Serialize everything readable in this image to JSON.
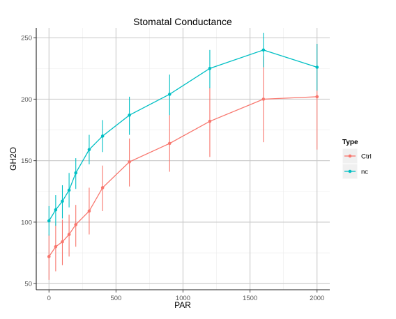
{
  "chart_data": {
    "type": "line",
    "title": "Stomatal Conductance",
    "xlabel": "PAR",
    "ylabel": "GH2O",
    "x": [
      0,
      50,
      100,
      150,
      200,
      300,
      400,
      600,
      900,
      1200,
      1600,
      2000
    ],
    "xlim": [
      -95,
      2095
    ],
    "ylim": [
      45,
      258
    ],
    "xticks": [
      0,
      500,
      1000,
      1500,
      2000
    ],
    "yticks": [
      50,
      100,
      150,
      200,
      250
    ],
    "xtick_labels": [
      "0",
      "500",
      "1000",
      "1500",
      "2000"
    ],
    "ytick_labels": [
      "50",
      "100",
      "150",
      "200",
      "250"
    ],
    "grid": true,
    "legend": {
      "title": "Type",
      "position": "right"
    },
    "series": [
      {
        "name": "Ctrl",
        "color": "#f8766d",
        "values": [
          72,
          80,
          84,
          90,
          98,
          109,
          128,
          149,
          164,
          182,
          200,
          202
        ],
        "lower": [
          53,
          60,
          65,
          72,
          80,
          90,
          109,
          129,
          141,
          153,
          165,
          159
        ],
        "upper": [
          90,
          99,
          102,
          106,
          114,
          128,
          146,
          168,
          187,
          210,
          235,
          245
        ]
      },
      {
        "name": "nc",
        "color": "#00bfc4",
        "values": [
          101,
          110,
          117,
          126,
          140,
          159,
          170,
          187,
          204,
          225,
          240,
          226
        ],
        "lower": [
          89,
          97,
          103,
          112,
          127,
          147,
          157,
          171,
          187,
          209,
          226,
          207
        ],
        "upper": [
          113,
          122,
          130,
          140,
          152,
          171,
          183,
          202,
          220,
          240,
          254,
          245
        ]
      }
    ]
  }
}
